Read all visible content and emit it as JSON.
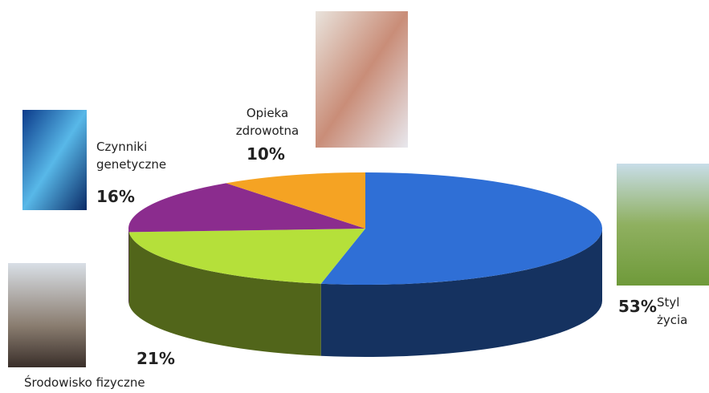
{
  "chart_data": {
    "type": "pie",
    "categories": [
      "Styl życia",
      "Środowisko fizyczne",
      "Czynniki genetyczne",
      "Opieka zdrowotna"
    ],
    "values": [
      53,
      21,
      16,
      10
    ],
    "value_labels": [
      "53%",
      "21%",
      "16%",
      "10%"
    ],
    "colors": [
      "#2f6fd6",
      "#b5e03a",
      "#8b2c8e",
      "#f5a323"
    ]
  }
}
